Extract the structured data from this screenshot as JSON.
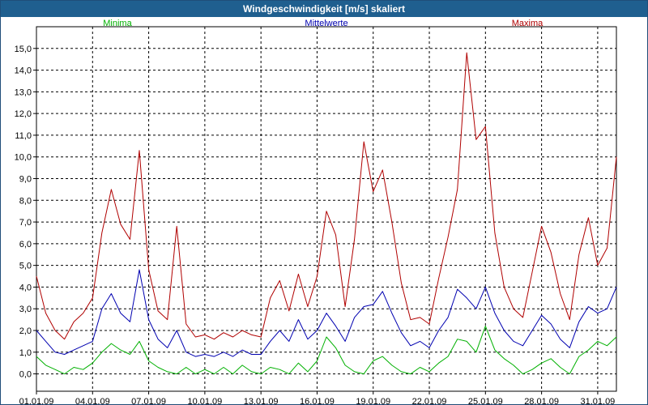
{
  "window": {
    "title": "Windgeschwindigkeit [m/s] skaliert"
  },
  "chart_data": {
    "type": "line",
    "title": "Windgeschwindigkeit [m/s] skaliert",
    "xlabel": "",
    "ylabel": "",
    "ylim": [
      -0.8,
      16.0
    ],
    "xlim_days": [
      0,
      31
    ],
    "grid": true,
    "legend_position": "top",
    "yticks": [
      0.0,
      1.0,
      2.0,
      3.0,
      4.0,
      5.0,
      6.0,
      7.0,
      8.0,
      9.0,
      10.0,
      11.0,
      12.0,
      13.0,
      14.0,
      15.0
    ],
    "ytick_labels": [
      "0,0",
      "1,0",
      "2,0",
      "3,0",
      "4,0",
      "5,0",
      "6,0",
      "7,0",
      "8,0",
      "9,0",
      "10,0",
      "11,0",
      "12,0",
      "13,0",
      "14,0",
      "15,0"
    ],
    "xticks_day": [
      0,
      3,
      6,
      9,
      12,
      15,
      18,
      21,
      24,
      27,
      30
    ],
    "xtick_labels": [
      "01.01.09",
      "04.01.09",
      "07.01.09",
      "10.01.09",
      "13.01.09",
      "16.01.09",
      "19.01.09",
      "22.01.09",
      "25.01.09",
      "28.01.09",
      "31.01.09"
    ],
    "series": [
      {
        "name": "Minima",
        "color": "#00b000",
        "x": [
          0,
          0.5,
          1,
          1.5,
          2,
          2.5,
          3,
          3.5,
          4,
          4.5,
          5,
          5.5,
          6,
          6.5,
          7,
          7.5,
          8,
          8.5,
          9,
          9.5,
          10,
          10.5,
          11,
          11.5,
          12,
          12.5,
          13,
          13.5,
          14,
          14.5,
          15,
          15.5,
          16,
          16.5,
          17,
          17.5,
          18,
          18.5,
          19,
          19.5,
          20,
          20.5,
          21,
          21.5,
          22,
          22.5,
          23,
          23.5,
          24,
          24.5,
          25,
          25.5,
          26,
          26.5,
          27,
          27.5,
          28,
          28.5,
          29,
          29.5,
          30,
          30.5,
          31
        ],
        "values": [
          0.8,
          0.4,
          0.2,
          0.0,
          0.3,
          0.2,
          0.5,
          1.0,
          1.4,
          1.1,
          0.9,
          1.5,
          0.6,
          0.3,
          0.1,
          0.0,
          0.3,
          0.0,
          0.2,
          0.0,
          0.3,
          0.0,
          0.4,
          0.1,
          0.0,
          0.3,
          0.2,
          0.0,
          0.5,
          0.1,
          0.6,
          1.7,
          1.2,
          0.4,
          0.1,
          0.0,
          0.6,
          0.8,
          0.4,
          0.1,
          0.0,
          0.3,
          0.1,
          0.5,
          0.8,
          1.6,
          1.5,
          1.0,
          2.2,
          1.1,
          0.7,
          0.4,
          0.0,
          0.2,
          0.5,
          0.7,
          0.3,
          0.0,
          0.8,
          1.1,
          1.5,
          1.3,
          1.7
        ]
      },
      {
        "name": "Mittelwerte",
        "color": "#0000b0",
        "x": [
          0,
          0.5,
          1,
          1.5,
          2,
          2.5,
          3,
          3.5,
          4,
          4.5,
          5,
          5.5,
          6,
          6.5,
          7,
          7.5,
          8,
          8.5,
          9,
          9.5,
          10,
          10.5,
          11,
          11.5,
          12,
          12.5,
          13,
          13.5,
          14,
          14.5,
          15,
          15.5,
          16,
          16.5,
          17,
          17.5,
          18,
          18.5,
          19,
          19.5,
          20,
          20.5,
          21,
          21.5,
          22,
          22.5,
          23,
          23.5,
          24,
          24.5,
          25,
          25.5,
          26,
          26.5,
          27,
          27.5,
          28,
          28.5,
          29,
          29.5,
          30,
          30.5,
          31
        ],
        "values": [
          2.0,
          1.5,
          1.0,
          0.9,
          1.1,
          1.3,
          1.5,
          3.0,
          3.7,
          2.8,
          2.4,
          4.8,
          2.5,
          1.6,
          1.2,
          2.0,
          1.0,
          0.8,
          0.9,
          0.8,
          1.0,
          0.8,
          1.1,
          0.9,
          0.9,
          1.5,
          2.0,
          1.5,
          2.5,
          1.6,
          2.0,
          2.8,
          2.2,
          1.5,
          2.6,
          3.1,
          3.2,
          3.8,
          2.8,
          1.9,
          1.3,
          1.5,
          1.2,
          2.0,
          2.6,
          3.9,
          3.5,
          3.0,
          4.0,
          2.8,
          2.0,
          1.5,
          1.3,
          2.0,
          2.7,
          2.3,
          1.6,
          1.2,
          2.4,
          3.1,
          2.8,
          3.0,
          4.0
        ]
      },
      {
        "name": "Maxima",
        "color": "#b00000",
        "x": [
          0,
          0.5,
          1,
          1.5,
          2,
          2.5,
          3,
          3.5,
          4,
          4.5,
          5,
          5.5,
          6,
          6.5,
          7,
          7.5,
          8,
          8.5,
          9,
          9.5,
          10,
          10.5,
          11,
          11.5,
          12,
          12.5,
          13,
          13.5,
          14,
          14.5,
          15,
          15.5,
          16,
          16.5,
          17,
          17.5,
          18,
          18.5,
          19,
          19.5,
          20,
          20.5,
          21,
          21.5,
          22,
          22.5,
          23,
          23.5,
          24,
          24.5,
          25,
          25.5,
          26,
          26.5,
          27,
          27.5,
          28,
          28.5,
          29,
          29.5,
          30,
          30.5,
          31
        ],
        "values": [
          4.5,
          2.8,
          2.0,
          1.6,
          2.4,
          2.8,
          3.5,
          6.5,
          8.5,
          6.9,
          6.2,
          10.3,
          4.8,
          2.9,
          2.5,
          6.8,
          2.3,
          1.7,
          1.8,
          1.6,
          1.9,
          1.7,
          2.0,
          1.8,
          1.7,
          3.5,
          4.3,
          2.9,
          4.6,
          3.1,
          4.5,
          7.5,
          6.4,
          3.1,
          6.2,
          10.7,
          8.4,
          9.4,
          7.0,
          4.2,
          2.5,
          2.6,
          2.3,
          4.4,
          6.3,
          8.5,
          14.8,
          10.8,
          11.4,
          6.5,
          4.0,
          3.0,
          2.6,
          4.7,
          6.8,
          5.6,
          3.7,
          2.5,
          5.5,
          7.2,
          5.0,
          5.8,
          10.0
        ]
      }
    ]
  }
}
